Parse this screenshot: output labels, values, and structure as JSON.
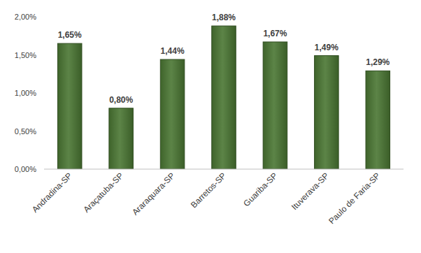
{
  "chart_data": {
    "type": "bar",
    "categories": [
      "Andradina-SP",
      "Araçatuba-SP",
      "Araraquara-SP",
      "Barretos-SP",
      "Guariba-SP",
      "Ituverava-SP",
      "Paulo de Faria-SP"
    ],
    "values": [
      1.65,
      0.8,
      1.44,
      1.88,
      1.67,
      1.49,
      1.29
    ],
    "value_labels": [
      "1,65%",
      "0,80%",
      "1,44%",
      "1,88%",
      "1,67%",
      "1,49%",
      "1,29%"
    ],
    "color": "#4a7632",
    "ylim": [
      0,
      2
    ],
    "yticks": [
      {
        "value": 0,
        "label": "0,00%"
      },
      {
        "value": 0.5,
        "label": "0,50%"
      },
      {
        "value": 1,
        "label": "1,00%"
      },
      {
        "value": 1.5,
        "label": "1,50%"
      },
      {
        "value": 2,
        "label": "2,00%"
      }
    ],
    "grid": false,
    "data_labels": true
  }
}
